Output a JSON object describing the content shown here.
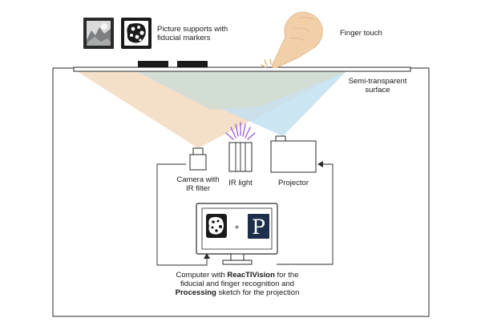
{
  "labels": {
    "picture_supports_line1": "Picture supports with",
    "picture_supports_line2": "fiducial markers",
    "finger_touch": "Finger touch",
    "surface_line1": "Semi-transparent",
    "surface_line2": "surface",
    "camera_line1": "Camera with",
    "camera_line2": "IR filter",
    "ir_light": "IR light",
    "projector": "Projector",
    "computer_part1": "Computer with ",
    "computer_reactivision": "ReacTIVision",
    "computer_part2": " for the",
    "computer_line2": "fiducial and finger recognition and",
    "computer_processing": "Processing",
    "computer_line3_rest": " sketch for the projection",
    "plus": "+",
    "processing_logo_letter": "P"
  },
  "colors": {
    "camera_beam": "#f3dcc2",
    "projector_beam": "#c3e0f1",
    "overlap_beam": "#d3ddd0",
    "ir_rays": "#9b59d0",
    "finger_skin": "#f1cfa8",
    "processing_logo_bg": "#1d2f4a",
    "outline": "#2a2a2a"
  }
}
